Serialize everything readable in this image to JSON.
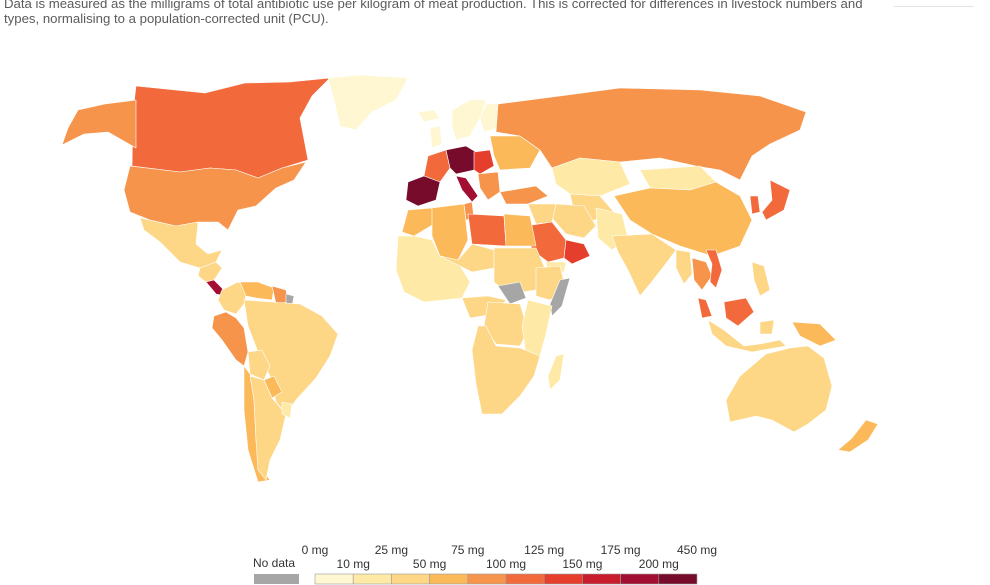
{
  "subtitle": "Data is measured as the milligrams of total antibiotic use per kilogram of meat production. This is corrected for differences in livestock numbers and types, normalising to a population-corrected unit (PCU).",
  "legend": {
    "no_data_label": "No data",
    "no_data_color": "#a6a6a6",
    "top_labels": [
      "0 mg",
      "25 mg",
      "75 mg",
      "125 mg",
      "175 mg",
      "450 mg"
    ],
    "bottom_labels": [
      "10 mg",
      "50 mg",
      "100 mg",
      "150 mg",
      "200 mg"
    ],
    "bins": [
      {
        "range": "0–10 mg",
        "color": "#fef7d2"
      },
      {
        "range": "10–25 mg",
        "color": "#feeaa6"
      },
      {
        "range": "25–50 mg",
        "color": "#fdd686"
      },
      {
        "range": "50–75 mg",
        "color": "#fbb95a"
      },
      {
        "range": "75–100 mg",
        "color": "#f7944c"
      },
      {
        "range": "100–125 mg",
        "color": "#f26a3c"
      },
      {
        "range": "125–150 mg",
        "color": "#e53e2c"
      },
      {
        "range": "150–175 mg",
        "color": "#c81d2c"
      },
      {
        "range": "175–200 mg",
        "color": "#a30f33"
      },
      {
        "range": "200–450 mg",
        "color": "#760b2b"
      }
    ]
  },
  "regions": [
    {
      "name": "Canada",
      "color": "#f26a3c"
    },
    {
      "name": "Alaska (United States)",
      "color": "#f7944c"
    },
    {
      "name": "Greenland",
      "color": "#fef7d2"
    },
    {
      "name": "United States",
      "color": "#f7944c"
    },
    {
      "name": "Mexico",
      "color": "#fdd686"
    },
    {
      "name": "Central America",
      "color": "#fdd686"
    },
    {
      "name": "Costa Rica / Panama",
      "color": "#a30f33"
    },
    {
      "name": "Colombia",
      "color": "#fdd686"
    },
    {
      "name": "Venezuela",
      "color": "#fbb95a"
    },
    {
      "name": "Guyana / Suriname",
      "color": "#f7944c"
    },
    {
      "name": "French Guiana",
      "color": "#a6a6a6"
    },
    {
      "name": "Ecuador / Peru",
      "color": "#f7944c"
    },
    {
      "name": "Brazil",
      "color": "#fdd686"
    },
    {
      "name": "Bolivia",
      "color": "#fdd686"
    },
    {
      "name": "Paraguay",
      "color": "#fbb95a"
    },
    {
      "name": "Chile",
      "color": "#fbb95a"
    },
    {
      "name": "Argentina",
      "color": "#fdd686"
    },
    {
      "name": "Uruguay",
      "color": "#feeaa6"
    },
    {
      "name": "Iceland",
      "color": "#fef7d2"
    },
    {
      "name": "United Kingdom",
      "color": "#fef7d2"
    },
    {
      "name": "Scandinavia",
      "color": "#fef7d2"
    },
    {
      "name": "Finland",
      "color": "#fef7d2"
    },
    {
      "name": "France",
      "color": "#f26a3c"
    },
    {
      "name": "Spain / Portugal",
      "color": "#760b2b"
    },
    {
      "name": "Germany / Poland",
      "color": "#760b2b"
    },
    {
      "name": "Italy",
      "color": "#a30f33"
    },
    {
      "name": "Central Europe",
      "color": "#e53e2c"
    },
    {
      "name": "Balkans",
      "color": "#f7944c"
    },
    {
      "name": "Eastern Europe",
      "color": "#fbb95a"
    },
    {
      "name": "Turkey",
      "color": "#f7944c"
    },
    {
      "name": "Russia",
      "color": "#f7944c"
    },
    {
      "name": "Kazakhstan",
      "color": "#feeaa6"
    },
    {
      "name": "Central Asia",
      "color": "#fdd686"
    },
    {
      "name": "Mongolia",
      "color": "#feeaa6"
    },
    {
      "name": "China",
      "color": "#fbb95a"
    },
    {
      "name": "Korea",
      "color": "#f26a3c"
    },
    {
      "name": "Japan",
      "color": "#f26a3c"
    },
    {
      "name": "Iran",
      "color": "#fdd686"
    },
    {
      "name": "Iraq / Syria",
      "color": "#fdd686"
    },
    {
      "name": "Saudi Arabia",
      "color": "#f26a3c"
    },
    {
      "name": "Oman / UAE",
      "color": "#e53e2c"
    },
    {
      "name": "Yemen",
      "color": "#feeaa6"
    },
    {
      "name": "Afghanistan / Pakistan",
      "color": "#feeaa6"
    },
    {
      "name": "India",
      "color": "#fdd686"
    },
    {
      "name": "Myanmar",
      "color": "#fdd686"
    },
    {
      "name": "Thailand",
      "color": "#f7944c"
    },
    {
      "name": "Vietnam",
      "color": "#f26a3c"
    },
    {
      "name": "Malaysia",
      "color": "#f26a3c"
    },
    {
      "name": "Indonesia",
      "color": "#fdd686"
    },
    {
      "name": "Philippines",
      "color": "#fdd686"
    },
    {
      "name": "Papua New Guinea",
      "color": "#fbb95a"
    },
    {
      "name": "Australia",
      "color": "#fdd686"
    },
    {
      "name": "New Zealand",
      "color": "#fbb95a"
    },
    {
      "name": "Morocco",
      "color": "#fbb95a"
    },
    {
      "name": "Algeria",
      "color": "#fbb95a"
    },
    {
      "name": "Tunisia",
      "color": "#f7944c"
    },
    {
      "name": "Libya",
      "color": "#f26a3c"
    },
    {
      "name": "Egypt",
      "color": "#fbb95a"
    },
    {
      "name": "West Africa",
      "color": "#feeaa6"
    },
    {
      "name": "Mali / Niger",
      "color": "#fdd686"
    },
    {
      "name": "Chad / Sudan",
      "color": "#fdd686"
    },
    {
      "name": "Ethiopia",
      "color": "#fdd686"
    },
    {
      "name": "Somalia",
      "color": "#a6a6a6"
    },
    {
      "name": "Central Africa",
      "color": "#fdd686"
    },
    {
      "name": "DR Congo",
      "color": "#fdd686"
    },
    {
      "name": "East Africa",
      "color": "#feeaa6"
    },
    {
      "name": "Southern Africa",
      "color": "#fdd686"
    },
    {
      "name": "Madagascar",
      "color": "#feeaa6"
    }
  ]
}
